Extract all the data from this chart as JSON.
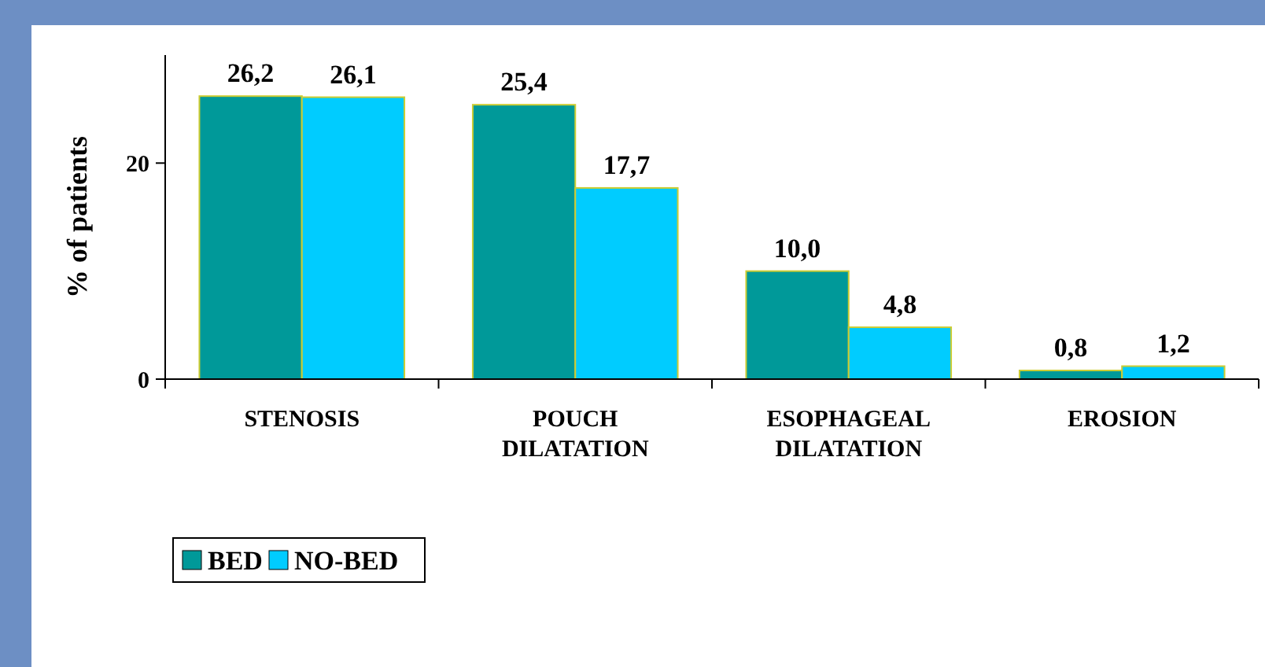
{
  "chart_data": {
    "type": "bar",
    "ylabel": "% of patients",
    "categories": [
      "STENOSIS",
      "POUCH DILATATION",
      "ESOPHAGEAL DILATATION",
      "EROSION"
    ],
    "series": [
      {
        "name": "BED",
        "color": "#009999",
        "values": [
          26.2,
          25.4,
          10.0,
          0.8
        ],
        "value_labels": [
          "26,2",
          "25,4",
          "10,0",
          "0,8"
        ]
      },
      {
        "name": "NO-BED",
        "color": "#00ccff",
        "values": [
          26.1,
          17.7,
          4.8,
          1.2
        ],
        "value_labels": [
          "26,1",
          "17,7",
          "4,8",
          "1,2"
        ]
      }
    ],
    "ylim": [
      0,
      30
    ],
    "yticks": [
      0,
      20
    ],
    "grid": false,
    "legend": "bottom left"
  }
}
